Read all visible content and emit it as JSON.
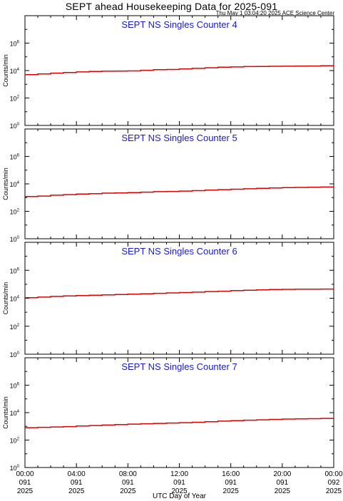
{
  "header": {
    "title": "SEPT ahead Housekeeping Data for 2025-091",
    "timestamp": "Thu May  1 03:04:20 2025 ACE Science Center"
  },
  "colors": {
    "line": "#dd0000",
    "panel_title": "#1a1ac8",
    "axes": "#000000"
  },
  "chart_data": [
    {
      "type": "line",
      "title": "SEPT NS Singles Counter 4",
      "ylabel": "Counts/min",
      "xlabel": "UTC Day of Year",
      "yscale": "log",
      "ylim": [
        1,
        100000000
      ],
      "xlim": [
        0,
        24
      ],
      "ytick_labels": [
        {
          "base": "10",
          "exp": "0"
        },
        {
          "base": "10",
          "exp": "2"
        },
        {
          "base": "10",
          "exp": "4"
        },
        {
          "base": "10",
          "exp": "6"
        }
      ],
      "series": [
        {
          "x": [
            0,
            1,
            2,
            3,
            4,
            5,
            6,
            7,
            8,
            9,
            10,
            11,
            12,
            13,
            14,
            15,
            16,
            17,
            18,
            19,
            20,
            21,
            22,
            23,
            24
          ],
          "y": [
            5000,
            5600,
            6500,
            7200,
            8000,
            8600,
            9000,
            9200,
            9400,
            10500,
            11500,
            12000,
            13000,
            14500,
            16000,
            17500,
            18500,
            19500,
            20000,
            20500,
            20800,
            21000,
            21500,
            22500,
            23500
          ]
        }
      ]
    },
    {
      "type": "line",
      "title": "SEPT NS Singles Counter 5",
      "ylabel": "Counts/min",
      "xlabel": "UTC Day of Year",
      "yscale": "log",
      "ylim": [
        1,
        100000000
      ],
      "xlim": [
        0,
        24
      ],
      "ytick_labels": [
        {
          "base": "10",
          "exp": "0"
        },
        {
          "base": "10",
          "exp": "2"
        },
        {
          "base": "10",
          "exp": "4"
        },
        {
          "base": "10",
          "exp": "6"
        }
      ],
      "series": [
        {
          "x": [
            0,
            1,
            2,
            3,
            4,
            5,
            6,
            7,
            8,
            9,
            10,
            11,
            12,
            13,
            14,
            15,
            16,
            17,
            18,
            19,
            20,
            21,
            22,
            23,
            24
          ],
          "y": [
            1200,
            1300,
            1500,
            1650,
            1800,
            1950,
            2100,
            2200,
            2300,
            2500,
            2700,
            2800,
            3000,
            3200,
            3500,
            3800,
            4100,
            4400,
            4700,
            5000,
            5300,
            5500,
            5700,
            5900,
            6000
          ]
        }
      ]
    },
    {
      "type": "line",
      "title": "SEPT NS Singles Counter 6",
      "ylabel": "Counts/min",
      "xlabel": "UTC Day of Year",
      "yscale": "log",
      "ylim": [
        1,
        100000000
      ],
      "xlim": [
        0,
        24
      ],
      "ytick_labels": [
        {
          "base": "10",
          "exp": "0"
        },
        {
          "base": "10",
          "exp": "2"
        },
        {
          "base": "10",
          "exp": "4"
        },
        {
          "base": "10",
          "exp": "6"
        }
      ],
      "series": [
        {
          "x": [
            0,
            1,
            2,
            3,
            4,
            5,
            6,
            7,
            8,
            9,
            10,
            11,
            12,
            13,
            14,
            15,
            16,
            17,
            18,
            19,
            20,
            21,
            22,
            23,
            24
          ],
          "y": [
            11000,
            12000,
            13500,
            14500,
            15500,
            16500,
            17500,
            18500,
            19500,
            21000,
            22500,
            24000,
            25500,
            27500,
            30000,
            32000,
            35000,
            37500,
            40000,
            42000,
            43500,
            44500,
            45000,
            45500,
            46000
          ]
        }
      ]
    },
    {
      "type": "line",
      "title": "SEPT NS Singles Counter 7",
      "ylabel": "Counts/min",
      "xlabel": "UTC Day of Year",
      "yscale": "log",
      "ylim": [
        1,
        100000000
      ],
      "xlim": [
        0,
        24
      ],
      "ytick_labels": [
        {
          "base": "10",
          "exp": "0"
        },
        {
          "base": "10",
          "exp": "2"
        },
        {
          "base": "10",
          "exp": "4"
        },
        {
          "base": "10",
          "exp": "6"
        }
      ],
      "series": [
        {
          "x": [
            0,
            1,
            2,
            3,
            4,
            5,
            6,
            7,
            8,
            9,
            10,
            11,
            12,
            13,
            14,
            15,
            16,
            17,
            18,
            19,
            20,
            21,
            22,
            23,
            24
          ],
          "y": [
            800,
            850,
            900,
            960,
            1050,
            1150,
            1250,
            1350,
            1450,
            1550,
            1650,
            1750,
            1850,
            2000,
            2200,
            2400,
            2600,
            2800,
            3000,
            3200,
            3400,
            3500,
            3600,
            3800,
            4000
          ]
        }
      ]
    }
  ],
  "x_axis": {
    "label": "UTC Day of Year",
    "ticks": [
      {
        "x": 0,
        "time": "00:00",
        "doy": "091",
        "year": "2025"
      },
      {
        "x": 4,
        "time": "04:00",
        "doy": "091",
        "year": "2025"
      },
      {
        "x": 8,
        "time": "08:00",
        "doy": "091",
        "year": "2025"
      },
      {
        "x": 12,
        "time": "12:00",
        "doy": "091",
        "year": "2025"
      },
      {
        "x": 16,
        "time": "16:00",
        "doy": "091",
        "year": "2025"
      },
      {
        "x": 20,
        "time": "20:00",
        "doy": "091",
        "year": "2025"
      },
      {
        "x": 24,
        "time": "00:00",
        "doy": "092",
        "year": "2025"
      }
    ]
  }
}
